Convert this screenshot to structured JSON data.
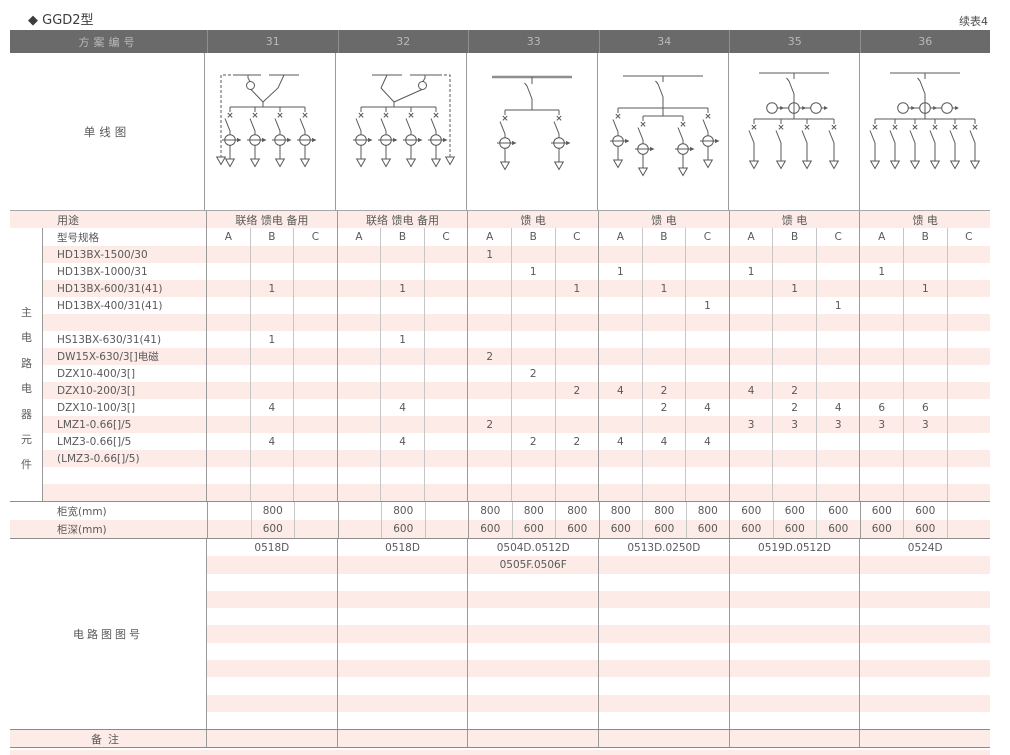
{
  "page": {
    "title": "◆ GGD2型",
    "continuation": "续表4"
  },
  "colors": {
    "header_bg": "#6a6a6a",
    "header_text": "#b9b9b9",
    "stripe_pink": "#fcebe7",
    "grid_line": "#9a9a9a",
    "text": "#595959"
  },
  "header": {
    "label": "方案编号",
    "schemes": [
      "31",
      "32",
      "33",
      "34",
      "35",
      "36"
    ]
  },
  "diagrams": {
    "scheme_31": "dual-incomer-with-coupler-4-feeders-dashed-left",
    "scheme_32": "dual-incomer-with-coupler-4-feeders-dashed-right",
    "scheme_33": "single-bus-2-feeders",
    "scheme_34": "single-bus-4-feeders",
    "scheme_35": "single-bus-ct-group-4-feeders",
    "scheme_36": "single-bus-ct-group-6-feeders"
  },
  "rows": {
    "diagram_label": "单线图",
    "usage": {
      "label": "用途",
      "values": [
        "联络 馈电 备用",
        "联络 馈电 备用",
        "馈 电",
        "馈 电",
        "馈 电",
        "馈 电"
      ]
    },
    "spec": {
      "label": "型号规格",
      "sub_columns": [
        "A",
        "B",
        "C"
      ]
    },
    "side_label": "主电路电器元件",
    "components": [
      {
        "model": "HD13BX-1500/30",
        "values": [
          "",
          "",
          "",
          "",
          "",
          "",
          "1",
          "",
          "",
          "",
          "",
          "",
          "",
          "",
          "",
          "",
          "",
          ""
        ]
      },
      {
        "model": "HD13BX-1000/31",
        "values": [
          "",
          "",
          "",
          "",
          "",
          "",
          "",
          "1",
          "",
          "1",
          "",
          "",
          "1",
          "",
          "",
          "1",
          "",
          ""
        ]
      },
      {
        "model": "HD13BX-600/31(41)",
        "values": [
          "",
          "1",
          "",
          "",
          "1",
          "",
          "",
          "",
          "1",
          "",
          "1",
          "",
          "",
          "1",
          "",
          "",
          "1",
          ""
        ]
      },
      {
        "model": "HD13BX-400/31(41)",
        "values": [
          "",
          "",
          "",
          "",
          "",
          "",
          "",
          "",
          "",
          "",
          "",
          "1",
          "",
          "",
          "1",
          "",
          "",
          ""
        ]
      },
      {
        "model": "",
        "values": [
          "",
          "",
          "",
          "",
          "",
          "",
          "",
          "",
          "",
          "",
          "",
          "",
          "",
          "",
          "",
          "",
          "",
          ""
        ]
      },
      {
        "model": "HS13BX-630/31(41)",
        "values": [
          "",
          "1",
          "",
          "",
          "1",
          "",
          "",
          "",
          "",
          "",
          "",
          "",
          "",
          "",
          "",
          "",
          "",
          ""
        ]
      },
      {
        "model": "DW15X-630/3[]电磁",
        "values": [
          "",
          "",
          "",
          "",
          "",
          "",
          "2",
          "",
          "",
          "",
          "",
          "",
          "",
          "",
          "",
          "",
          "",
          ""
        ]
      },
      {
        "model": "DZX10-400/3[]",
        "values": [
          "",
          "",
          "",
          "",
          "",
          "",
          "",
          "2",
          "",
          "",
          "",
          "",
          "",
          "",
          "",
          "",
          "",
          ""
        ]
      },
      {
        "model": "DZX10-200/3[]",
        "values": [
          "",
          "",
          "",
          "",
          "",
          "",
          "",
          "",
          "2",
          "4",
          "2",
          "",
          "4",
          "2",
          "",
          "",
          "",
          ""
        ]
      },
      {
        "model": "DZX10-100/3[]",
        "values": [
          "",
          "4",
          "",
          "",
          "4",
          "",
          "",
          "",
          "",
          "",
          "2",
          "4",
          "",
          "2",
          "4",
          "6",
          "6",
          ""
        ]
      },
      {
        "model": "LMZ1-0.66[]/5",
        "values": [
          "",
          "",
          "",
          "",
          "",
          "",
          "2",
          "",
          "",
          "",
          "",
          "",
          "3",
          "3",
          "3",
          "3",
          "3",
          ""
        ]
      },
      {
        "model": "LMZ3-0.66[]/5",
        "values": [
          "",
          "4",
          "",
          "",
          "4",
          "",
          "",
          "2",
          "2",
          "4",
          "4",
          "4",
          "",
          "",
          "",
          "",
          "",
          ""
        ]
      },
      {
        "model": "(LMZ3-0.66[]/5)",
        "values": [
          "",
          "",
          "",
          "",
          "",
          "",
          "",
          "",
          "",
          "",
          "",
          "",
          "",
          "",
          "",
          "",
          "",
          ""
        ]
      },
      {
        "model": "",
        "values": [
          "",
          "",
          "",
          "",
          "",
          "",
          "",
          "",
          "",
          "",
          "",
          "",
          "",
          "",
          "",
          "",
          "",
          ""
        ]
      },
      {
        "model": "",
        "values": [
          "",
          "",
          "",
          "",
          "",
          "",
          "",
          "",
          "",
          "",
          "",
          "",
          "",
          "",
          "",
          "",
          "",
          ""
        ]
      }
    ],
    "width": {
      "label": "柜宽(mm)",
      "values": [
        "",
        "800",
        "",
        "",
        "800",
        "",
        "800",
        "800",
        "800",
        "800",
        "800",
        "800",
        "600",
        "600",
        "600",
        "600",
        "600",
        ""
      ]
    },
    "depth": {
      "label": "柜深(mm)",
      "values": [
        "",
        "600",
        "",
        "",
        "600",
        "",
        "600",
        "600",
        "600",
        "600",
        "600",
        "600",
        "600",
        "600",
        "600",
        "600",
        "600",
        ""
      ]
    },
    "drawing": {
      "label": "电路图图号",
      "line1": [
        "0518D",
        "0518D",
        "0504D.0512D",
        "0513D.0250D",
        "0519D.0512D",
        "0524D"
      ],
      "line2": [
        "",
        "",
        "0505F.0506F",
        "",
        "",
        ""
      ],
      "filler_rows": 9
    },
    "remarks": {
      "label": "备注"
    }
  }
}
